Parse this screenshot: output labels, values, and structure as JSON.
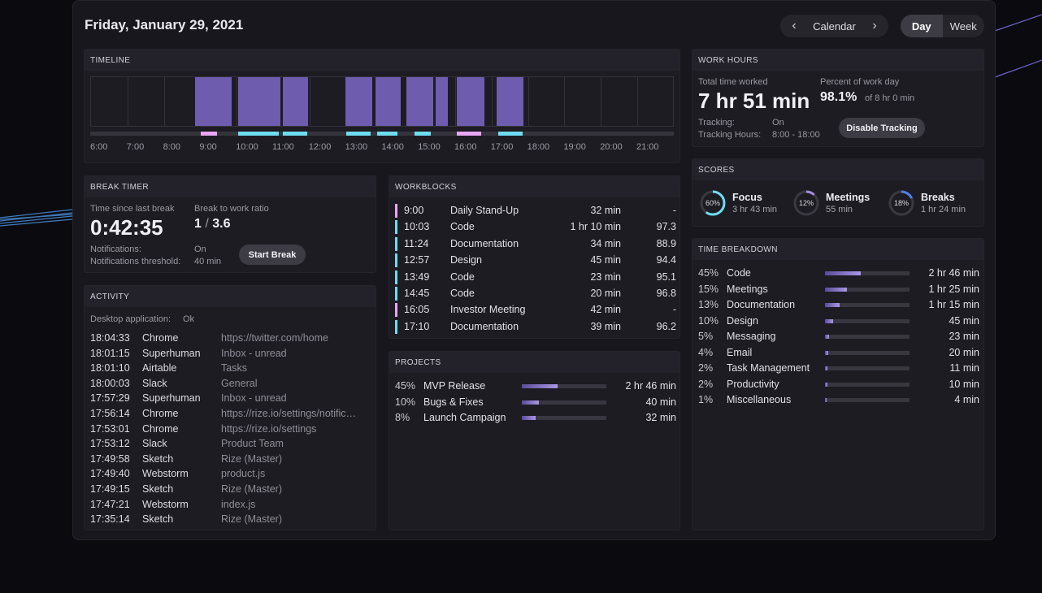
{
  "header": {
    "date": "Friday, January 29, 2021",
    "calendar_label": "Calendar",
    "view_day": "Day",
    "view_week": "Week"
  },
  "timeline": {
    "title": "TIMELINE",
    "hours": [
      "6:00",
      "7:00",
      "8:00",
      "9:00",
      "10:00",
      "11:00",
      "12:00",
      "13:00",
      "14:00",
      "15:00",
      "16:00",
      "17:00",
      "18:00",
      "19:00",
      "20:00",
      "21:00"
    ]
  },
  "break_timer": {
    "title": "BREAK TIMER",
    "since_label": "Time since last break",
    "since_value": "0:42:35",
    "ratio_label": "Break to work ratio",
    "ratio_left": "1",
    "ratio_sep": "/",
    "ratio_right": "3.6",
    "notif_label": "Notifications:",
    "notif_value": "On",
    "threshold_label": "Notifications threshold:",
    "threshold_value": "40 min",
    "start_break": "Start Break"
  },
  "activity": {
    "title": "ACTIVITY",
    "desktop_label": "Desktop application:",
    "desktop_value": "Ok",
    "rows": [
      {
        "time": "18:04:33",
        "app": "Chrome",
        "detail": "https://twitter.com/home"
      },
      {
        "time": "18:01:15",
        "app": "Superhuman",
        "detail": "Inbox - unread"
      },
      {
        "time": "18:01:10",
        "app": "Airtable",
        "detail": "Tasks"
      },
      {
        "time": "18:00:03",
        "app": "Slack",
        "detail": "General"
      },
      {
        "time": "17:57:29",
        "app": "Superhuman",
        "detail": "Inbox - unread"
      },
      {
        "time": "17:56:14",
        "app": "Chrome",
        "detail": "https://rize.io/settings/notific…"
      },
      {
        "time": "17:53:01",
        "app": "Chrome",
        "detail": "https://rize.io/settings"
      },
      {
        "time": "17:53:12",
        "app": "Slack",
        "detail": "Product Team"
      },
      {
        "time": "17:49:58",
        "app": "Sketch",
        "detail": "Rize (Master)"
      },
      {
        "time": "17:49:40",
        "app": "Webstorm",
        "detail": "product.js"
      },
      {
        "time": "17:49:15",
        "app": "Sketch",
        "detail": "Rize (Master)"
      },
      {
        "time": "17:47:21",
        "app": "Webstorm",
        "detail": "index.js"
      },
      {
        "time": "17:35:14",
        "app": "Sketch",
        "detail": "Rize (Master)"
      }
    ]
  },
  "workblocks": {
    "title": "WORKBLOCKS",
    "rows": [
      {
        "time": "9:00",
        "name": "Daily Stand-Up",
        "duration": "32 min",
        "score": "-",
        "color": "#e9a6f2"
      },
      {
        "time": "10:03",
        "name": "Code",
        "duration": "1 hr 10 min",
        "score": "97.3",
        "color": "#6fdcf0"
      },
      {
        "time": "11:24",
        "name": "Documentation",
        "duration": "34 min",
        "score": "88.9",
        "color": "#6fdcf0"
      },
      {
        "time": "12:57",
        "name": "Design",
        "duration": "45 min",
        "score": "94.4",
        "color": "#6fdcf0"
      },
      {
        "time": "13:49",
        "name": "Code",
        "duration": "23 min",
        "score": "95.1",
        "color": "#6fdcf0"
      },
      {
        "time": "14:45",
        "name": "Code",
        "duration": "20 min",
        "score": "96.8",
        "color": "#6fdcf0"
      },
      {
        "time": "16:05",
        "name": "Investor Meeting",
        "duration": "42 min",
        "score": "-",
        "color": "#e9a6f2"
      },
      {
        "time": "17:10",
        "name": "Documentation",
        "duration": "39 min",
        "score": "96.2",
        "color": "#6fdcf0"
      }
    ]
  },
  "projects": {
    "title": "PROJECTS",
    "rows": [
      {
        "percent": "45%",
        "name": "MVP Release",
        "fill": 0.42,
        "duration": "2 hr 46 min"
      },
      {
        "percent": "10%",
        "name": "Bugs & Fixes",
        "fill": 0.2,
        "duration": "40 min"
      },
      {
        "percent": "8%",
        "name": "Launch Campaign",
        "fill": 0.16,
        "duration": "32 min"
      }
    ]
  },
  "work_hours": {
    "title": "WORK HOURS",
    "total_label": "Total time worked",
    "total_value": "7 hr 51 min",
    "percent_label": "Percent of work day",
    "percent_value": "98.1%",
    "percent_of": "of 8 hr 0 min",
    "tracking_label": "Tracking:",
    "tracking_value": "On",
    "tracking_hours_label": "Tracking Hours:",
    "tracking_hours_value": "8:00 - 18:00",
    "disable_button": "Disable Tracking"
  },
  "scores": {
    "title": "SCORES",
    "items": [
      {
        "name": "Focus",
        "percent": "60%",
        "value": 0.6,
        "time": "3 hr 43 min",
        "color": "#6fdcf0"
      },
      {
        "name": "Meetings",
        "percent": "12%",
        "value": 0.12,
        "time": "55 min",
        "color": "#a58be0"
      },
      {
        "name": "Breaks",
        "percent": "18%",
        "value": 0.18,
        "time": "1 hr 24 min",
        "color": "#4f7fe6"
      }
    ]
  },
  "time_breakdown": {
    "title": "TIME BREAKDOWN",
    "rows": [
      {
        "percent": "45%",
        "name": "Code",
        "fill": 0.42,
        "duration": "2 hr 46 min"
      },
      {
        "percent": "15%",
        "name": "Meetings",
        "fill": 0.26,
        "duration": "1 hr 25 min"
      },
      {
        "percent": "13%",
        "name": "Documentation",
        "fill": 0.17,
        "duration": "1 hr 15 min"
      },
      {
        "percent": "10%",
        "name": "Design",
        "fill": 0.1,
        "duration": "45 min"
      },
      {
        "percent": "5%",
        "name": "Messaging",
        "fill": 0.05,
        "duration": "23 min"
      },
      {
        "percent": "4%",
        "name": "Email",
        "fill": 0.04,
        "duration": "20 min"
      },
      {
        "percent": "2%",
        "name": "Task Management",
        "fill": 0.025,
        "duration": "11 min"
      },
      {
        "percent": "2%",
        "name": "Productivity",
        "fill": 0.025,
        "duration": "10 min"
      },
      {
        "percent": "1%",
        "name": "Miscellaneous",
        "fill": 0.015,
        "duration": "4 min"
      }
    ]
  },
  "colors": {
    "accent_cyan": "#6fdcf0",
    "accent_pink": "#e9a6f2",
    "block_purple": "#6e5cae"
  }
}
